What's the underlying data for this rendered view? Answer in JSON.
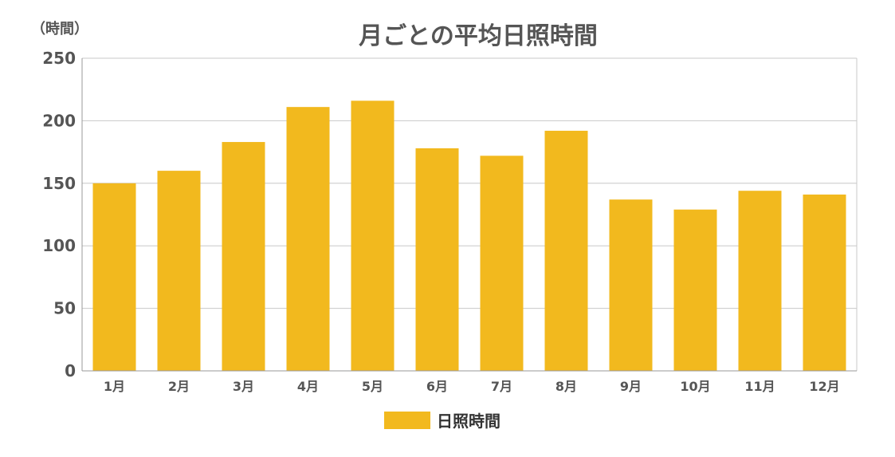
{
  "chart_data": {
    "type": "bar",
    "title": "月ごとの平均日照時間",
    "ylabel": "（時間）",
    "xlabel": "",
    "categories": [
      "1月",
      "2月",
      "3月",
      "4月",
      "5月",
      "6月",
      "7月",
      "8月",
      "9月",
      "10月",
      "11月",
      "12月"
    ],
    "series": [
      {
        "name": "日照時間",
        "color": "#F2B91E",
        "values": [
          150,
          160,
          183,
          211,
          216,
          178,
          172,
          192,
          137,
          129,
          144,
          141
        ]
      }
    ],
    "ylim": [
      0,
      250
    ],
    "yticks": [
      0,
      50,
      100,
      150,
      200,
      250
    ],
    "grid": true,
    "legend_position": "bottom-center"
  }
}
